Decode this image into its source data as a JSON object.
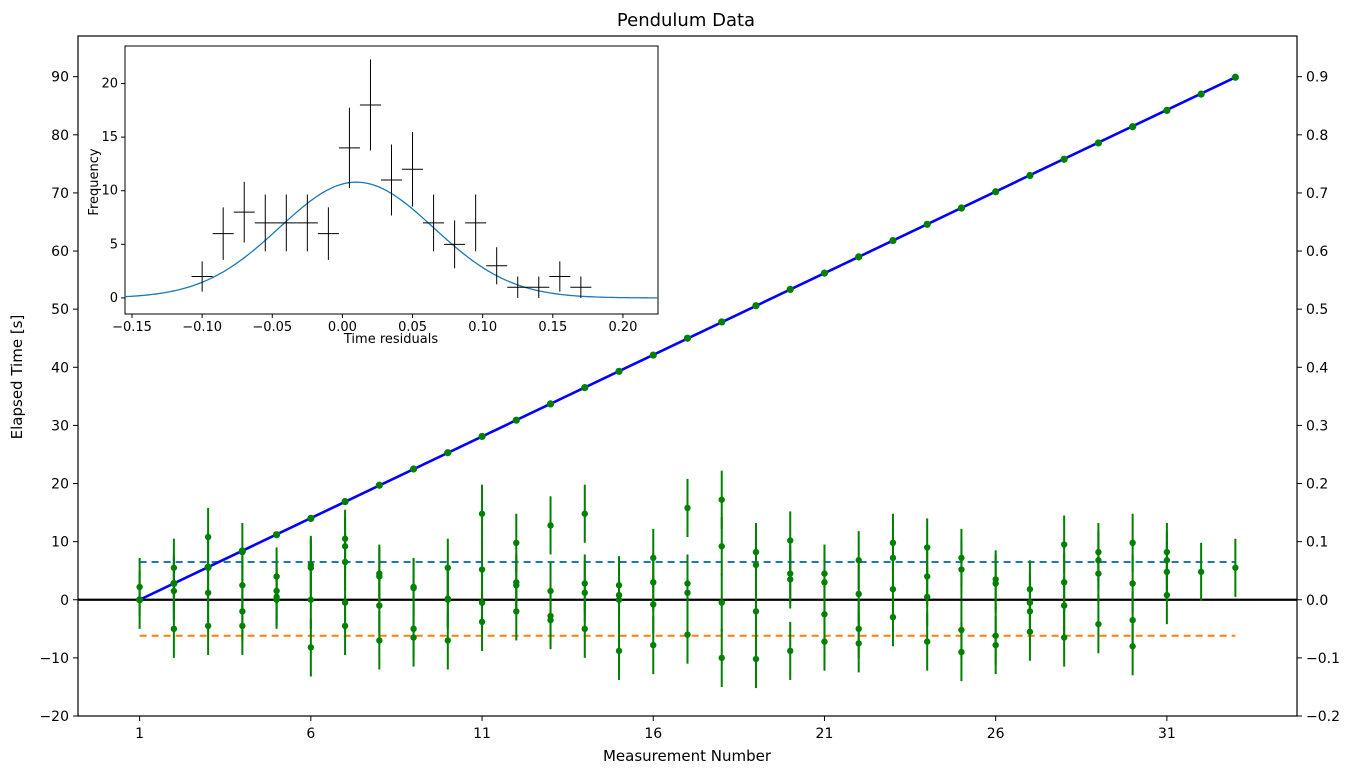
{
  "chart_data": [
    {
      "type": "scatter",
      "title": "Pendulum Data",
      "xlabel": "Measurement Number",
      "ylabel": "Elapsed Time [s]",
      "xlim": [
        -0.8,
        34.8
      ],
      "ylim": [
        -20,
        97
      ],
      "y2lim": [
        -0.2,
        0.97
      ],
      "x_ticks": [
        1,
        6,
        11,
        16,
        21,
        26,
        31
      ],
      "y_ticks": [
        -20,
        -10,
        0,
        10,
        20,
        30,
        40,
        50,
        60,
        70,
        80,
        90
      ],
      "y2_ticks": [
        -0.2,
        -0.1,
        0.0,
        0.1,
        0.2,
        0.3,
        0.4,
        0.5,
        0.6,
        0.7,
        0.8,
        0.9
      ],
      "y_tick_labels": [
        "−20",
        "−10",
        "0",
        "10",
        "20",
        "30",
        "40",
        "50",
        "60",
        "70",
        "80",
        "90"
      ],
      "y2_tick_labels": [
        "−0.2",
        "−0.1",
        "0.0",
        "0.1",
        "0.2",
        "0.3",
        "0.4",
        "0.5",
        "0.6",
        "0.7",
        "0.8",
        "0.9"
      ],
      "grid": false,
      "colors": {
        "fit_line": "#0000ff",
        "points": "#008000",
        "zero_line": "#000000",
        "upper_band": "#1f77b4",
        "lower_band": "#ff7f0e"
      },
      "elapsed_time": {
        "x": [
          1,
          2,
          3,
          4,
          5,
          6,
          7,
          8,
          9,
          10,
          11,
          12,
          13,
          14,
          15,
          16,
          17,
          18,
          19,
          20,
          21,
          22,
          23,
          24,
          25,
          26,
          27,
          28,
          29,
          30,
          31,
          32,
          33
        ],
        "y": [
          0.0,
          2.8,
          5.6,
          8.4,
          11.2,
          14.0,
          16.9,
          19.7,
          22.5,
          25.3,
          28.1,
          30.9,
          33.7,
          36.5,
          39.3,
          42.1,
          45.0,
          47.8,
          50.6,
          53.4,
          56.2,
          59.0,
          61.8,
          64.6,
          67.4,
          70.2,
          73.0,
          75.8,
          78.6,
          81.4,
          84.2,
          87.0,
          89.9
        ]
      },
      "residuals": {
        "x": [
          1,
          1,
          2,
          2,
          2,
          2,
          3,
          3,
          3,
          3,
          4,
          4,
          4,
          4,
          5,
          5,
          5,
          5,
          6,
          6,
          6,
          6,
          7,
          7,
          7,
          7,
          7,
          8,
          8,
          8,
          8,
          9,
          9,
          9,
          9,
          10,
          10,
          10,
          10,
          11,
          11,
          11,
          11,
          12,
          12,
          12,
          12,
          13,
          13,
          13,
          13,
          14,
          14,
          14,
          14,
          15,
          15,
          15,
          15,
          16,
          16,
          16,
          16,
          17,
          17,
          17,
          17,
          18,
          18,
          18,
          18,
          19,
          19,
          19,
          19,
          20,
          20,
          20,
          20,
          21,
          21,
          21,
          21,
          22,
          22,
          22,
          22,
          23,
          23,
          23,
          23,
          24,
          24,
          24,
          24,
          25,
          25,
          25,
          25,
          26,
          26,
          26,
          26,
          27,
          27,
          27,
          27,
          28,
          28,
          28,
          28,
          29,
          29,
          29,
          29,
          30,
          30,
          30,
          30,
          31,
          31,
          31,
          31,
          32,
          33
        ],
        "y": [
          0.022,
          0.0,
          0.055,
          0.015,
          -0.05,
          0.028,
          0.108,
          0.055,
          0.012,
          -0.045,
          0.082,
          0.025,
          -0.02,
          -0.045,
          0.04,
          0.015,
          0.0,
          0.005,
          0.06,
          0.055,
          0.0,
          -0.082,
          0.105,
          0.092,
          0.065,
          -0.005,
          -0.045,
          0.045,
          0.04,
          -0.01,
          -0.07,
          0.022,
          0.02,
          -0.05,
          -0.065,
          0.055,
          0.002,
          -0.07,
          0.0,
          0.148,
          0.052,
          -0.005,
          -0.038,
          0.098,
          0.03,
          0.025,
          -0.02,
          0.128,
          0.015,
          -0.028,
          -0.035,
          0.148,
          0.028,
          0.012,
          -0.05,
          0.025,
          0.008,
          0.0,
          -0.088,
          0.072,
          0.03,
          -0.008,
          -0.078,
          0.158,
          0.028,
          0.012,
          -0.06,
          0.172,
          0.092,
          -0.005,
          -0.1,
          0.082,
          0.06,
          -0.02,
          -0.102,
          0.102,
          0.045,
          0.035,
          -0.088,
          0.045,
          0.03,
          -0.025,
          -0.072,
          0.068,
          0.01,
          -0.05,
          -0.075,
          0.098,
          0.072,
          0.018,
          -0.03,
          0.09,
          0.04,
          0.005,
          -0.072,
          0.072,
          0.052,
          -0.052,
          -0.09,
          0.035,
          0.028,
          -0.062,
          -0.078,
          0.018,
          -0.005,
          -0.02,
          -0.055,
          0.095,
          0.03,
          -0.01,
          -0.065,
          0.082,
          0.068,
          0.045,
          -0.042,
          0.098,
          0.028,
          -0.035,
          -0.08,
          0.082,
          0.068,
          0.048,
          0.008,
          0.048,
          0.055
        ],
        "error": 0.05
      },
      "reference_lines": [
        {
          "y": 0.065,
          "style": "dashed",
          "color": "#1f77b4"
        },
        {
          "y": -0.062,
          "style": "dashed",
          "color": "#ff7f0e"
        },
        {
          "y": 0.0,
          "style": "solid",
          "color": "#000000"
        }
      ]
    },
    {
      "type": "histogram",
      "xlabel": "Time residuals",
      "ylabel": "Frequency",
      "xlim": [
        -0.155,
        0.225
      ],
      "ylim": [
        -1.5,
        23.5
      ],
      "x_ticks": [
        -0.15,
        -0.1,
        -0.05,
        0.0,
        0.05,
        0.1,
        0.15,
        0.2
      ],
      "x_tick_labels": [
        "−0.15",
        "−0.10",
        "−0.05",
        "0.00",
        "0.05",
        "0.10",
        "0.15",
        "0.20"
      ],
      "y_ticks": [
        0,
        5,
        10,
        15,
        20
      ],
      "bin_centers": [
        -0.1,
        -0.085,
        -0.07,
        -0.055,
        -0.04,
        -0.025,
        -0.01,
        0.005,
        0.02,
        0.035,
        0.05,
        0.065,
        0.08,
        0.095,
        0.11,
        0.125,
        0.14,
        0.155,
        0.17
      ],
      "counts": [
        2,
        6,
        8,
        7,
        7,
        7,
        6,
        14,
        18,
        11,
        12,
        7,
        5,
        7,
        3,
        1,
        1,
        2,
        1
      ],
      "bin_half_width": 0.0075,
      "gaussian_fit": {
        "amplitude": 10.8,
        "mean": 0.01,
        "sigma": 0.055
      },
      "colors": {
        "fit": "#1f77b4",
        "points": "#000000"
      }
    }
  ]
}
